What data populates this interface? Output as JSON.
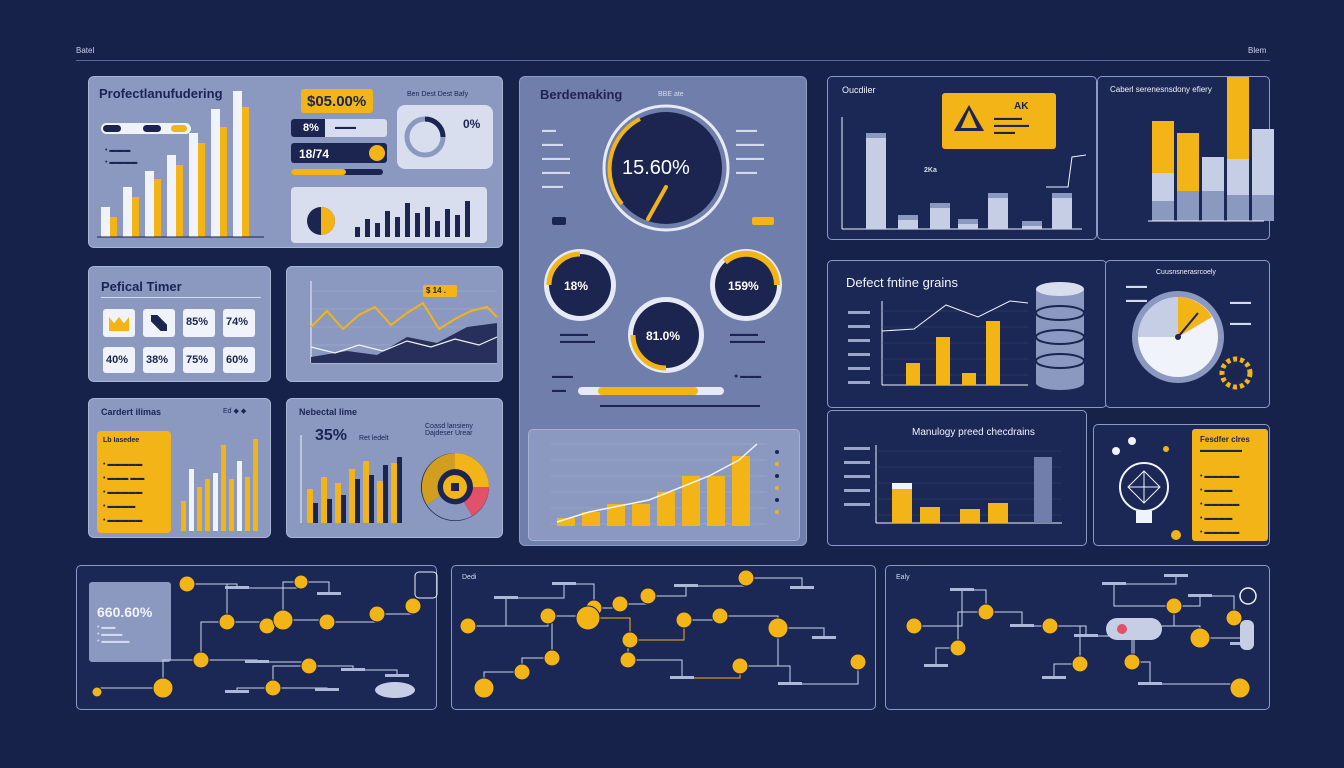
{
  "header": {
    "left_label": "Batel",
    "right_label": "Blem"
  },
  "panel_manufacturing": {
    "title": "Profectlanufudering",
    "kpi_main": "$05.00%",
    "kpi_small": "8%",
    "kpi_row_value": "18/74",
    "gauge_value": "0%",
    "top_right_label": "Ben Dest Dest Bafy"
  },
  "panel_timer": {
    "title": "Pefical Timer",
    "values": [
      "85%",
      "74%",
      "40%",
      "38%",
      "75%",
      "60%"
    ]
  },
  "panel_trend": {
    "tag": "$ 14 ."
  },
  "panel_contact": {
    "title": "Cardert ilimas",
    "list_header": "Lb Iasedee"
  },
  "panel_material": {
    "title": "Nebectal lime",
    "value": "35%",
    "sub": "Ret ledelt",
    "donut_title": "Coasd lansieny Dajdeser Urear"
  },
  "panel_benchmarking": {
    "title": "Berdemaking",
    "subtitle": "BBE ate",
    "gauge_main": "15.60%",
    "gauge_left": "18%",
    "gauge_right": "159%",
    "gauge_bottom": "81.0%"
  },
  "panel_overview": {
    "title": "Oucdiler",
    "alert_title": "AK",
    "bar_label": "2Ka"
  },
  "panel_right_top": {
    "title": "Caberl serenesnsdony efiery"
  },
  "panel_defect": {
    "title": "Defect fntine grains"
  },
  "panel_gauge_right": {
    "title": "Cuusnsnerasrcoely"
  },
  "panel_manology": {
    "title": "Manulogy preed checdrains"
  },
  "panel_feature": {
    "title": "Fesdfer clres"
  },
  "network_1": {
    "value": "660.60%"
  },
  "network_2": {
    "title": "Dedi"
  },
  "network_3": {
    "title": "Ealy"
  }
}
